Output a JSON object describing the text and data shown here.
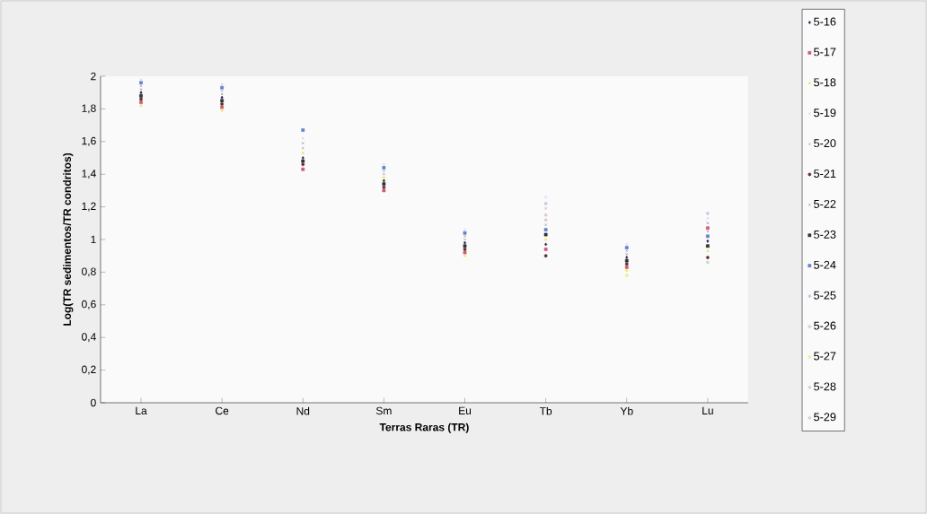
{
  "chart_data": {
    "type": "scatter",
    "xlabel": "Terras Raras (TR)",
    "ylabel": "Log(TR sedimentos/TR condritos)",
    "categories": [
      "La",
      "Ce",
      "Nd",
      "Sm",
      "Eu",
      "Tb",
      "Yb",
      "Lu"
    ],
    "ylim": [
      0,
      2
    ],
    "yticks": [
      0,
      {
        "value": 0.2,
        "label": "0,2"
      },
      {
        "value": 0.4,
        "label": "0,4"
      },
      {
        "value": 0.6,
        "label": "0,6"
      },
      {
        "value": 0.8,
        "label": "0,8"
      },
      1,
      {
        "value": 1.2,
        "label": "1,2"
      },
      {
        "value": 1.4,
        "label": "1,4"
      },
      {
        "value": 1.6,
        "label": "1,6"
      },
      {
        "value": 1.8,
        "label": "1,8"
      },
      2
    ],
    "legend": "right",
    "series": [
      {
        "name": "5-16",
        "color": "#1f1f5a",
        "marker": "diamond",
        "values": [
          1.9,
          1.87,
          1.5,
          1.36,
          0.98,
          0.97,
          0.89,
          0.99
        ]
      },
      {
        "name": "5-17",
        "color": "#d0587a",
        "marker": "square",
        "values": [
          1.84,
          1.81,
          1.43,
          1.3,
          0.92,
          0.94,
          0.83,
          1.07
        ]
      },
      {
        "name": "5-18",
        "color": "#e8e850",
        "marker": "triangle",
        "values": [
          1.82,
          1.79,
          1.53,
          1.38,
          0.9,
          1.0,
          0.81,
          0.93
        ]
      },
      {
        "name": "5-19",
        "color": "#a8b8e4",
        "marker": "cross",
        "values": [
          1.98,
          1.95,
          1.62,
          1.46,
          1.06,
          1.26,
          0.97,
          1.13
        ]
      },
      {
        "name": "5-20",
        "color": "#c06080",
        "marker": "cross",
        "values": [
          1.94,
          1.91,
          1.56,
          1.4,
          1.0,
          1.19,
          0.93,
          1.05
        ]
      },
      {
        "name": "5-21",
        "color": "#603030",
        "marker": "circle",
        "values": [
          1.86,
          1.83,
          1.46,
          1.32,
          0.94,
          0.9,
          0.85,
          0.89
        ]
      },
      {
        "name": "5-22",
        "color": "#408060",
        "marker": "cross",
        "values": [
          1.92,
          1.89,
          1.59,
          1.42,
          1.02,
          1.09,
          0.91,
          1.1
        ]
      },
      {
        "name": "5-23",
        "color": "#303030",
        "marker": "square",
        "values": [
          1.88,
          1.85,
          1.48,
          1.34,
          0.96,
          1.03,
          0.87,
          0.96
        ]
      },
      {
        "name": "5-24",
        "color": "#6080d0",
        "marker": "square",
        "values": [
          1.96,
          1.93,
          1.67,
          1.44,
          1.04,
          1.06,
          0.95,
          1.02
        ]
      },
      {
        "name": "5-25",
        "color": "#c8c8e4",
        "marker": "circle",
        "values": [
          null,
          null,
          null,
          null,
          null,
          1.22,
          null,
          1.16
        ]
      },
      {
        "name": "5-26",
        "color": "#dcc8dc",
        "marker": "circle",
        "values": [
          null,
          null,
          null,
          null,
          null,
          1.15,
          null,
          null
        ]
      },
      {
        "name": "5-27",
        "color": "#ecec98",
        "marker": "circle",
        "values": [
          null,
          null,
          null,
          null,
          null,
          null,
          0.78,
          null
        ]
      },
      {
        "name": "5-28",
        "color": "#c8dcc8",
        "marker": "circle",
        "values": [
          null,
          null,
          null,
          null,
          null,
          null,
          null,
          0.86
        ]
      },
      {
        "name": "5-29",
        "color": "#dccfc4",
        "marker": "circle",
        "values": [
          null,
          null,
          null,
          null,
          null,
          1.12,
          null,
          null
        ]
      }
    ]
  }
}
